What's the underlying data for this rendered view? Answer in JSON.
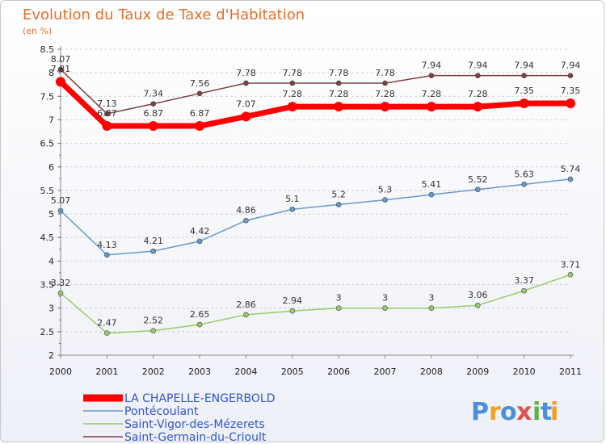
{
  "chart_data": {
    "type": "line",
    "title": "Evolution du Taux de Taxe d'Habitation",
    "subtitle": "(en %)",
    "x": [
      "2000",
      "2001",
      "2002",
      "2003",
      "2004",
      "2005",
      "2006",
      "2007",
      "2008",
      "2009",
      "2010",
      "2011"
    ],
    "ylim": [
      2,
      8.5
    ],
    "yticks": [
      "2",
      "2.5",
      "3",
      "3.5",
      "4",
      "4.5",
      "5",
      "5.5",
      "6",
      "6.5",
      "7",
      "7.5",
      "8",
      "8.5"
    ],
    "grid": "horizontal dashed",
    "legend_position": "bottom-left",
    "series": [
      {
        "name": "LA CHAPELLE-ENGERBOLD",
        "color": "#ff0000",
        "values": [
          7.81,
          6.87,
          6.87,
          6.87,
          7.07,
          7.28,
          7.28,
          7.28,
          7.28,
          7.28,
          7.35,
          7.35
        ],
        "labels": [
          "7.81",
          "6.87",
          "6.87",
          "6.87",
          "7.07",
          "7.28",
          "7.28",
          "7.28",
          "7.28",
          "7.28",
          "7.35",
          "7.35"
        ]
      },
      {
        "name": "Pontécoulant",
        "color": "#6699cc",
        "values": [
          5.07,
          4.13,
          4.21,
          4.42,
          4.86,
          5.1,
          5.2,
          5.3,
          5.41,
          5.52,
          5.63,
          5.74
        ],
        "labels": [
          "5.07",
          "4.13",
          "4.21",
          "4.42",
          "4.86",
          "5.1",
          "5.2",
          "5.3",
          "5.41",
          "5.52",
          "5.63",
          "5.74"
        ]
      },
      {
        "name": "Saint-Vigor-des-Mézerets",
        "color": "#99cc66",
        "values": [
          3.32,
          2.47,
          2.52,
          2.65,
          2.86,
          2.94,
          3,
          3,
          3,
          3.06,
          3.37,
          3.71
        ],
        "labels": [
          "3.32",
          "2.47",
          "2.52",
          "2.65",
          "2.86",
          "2.94",
          "3",
          "3",
          "3",
          "3.06",
          "3.37",
          "3.71"
        ]
      },
      {
        "name": "Saint-Germain-du-Crioult",
        "color": "#804040",
        "values": [
          8.07,
          7.13,
          7.34,
          7.56,
          7.78,
          7.78,
          7.78,
          7.78,
          7.94,
          7.94,
          7.94,
          7.94
        ],
        "labels": [
          "8.07",
          "7.13",
          "7.34",
          "7.56",
          "7.78",
          "7.78",
          "7.78",
          "7.78",
          "7.94",
          "7.94",
          "7.94",
          "7.94"
        ]
      }
    ]
  },
  "logo": {
    "letters": [
      "P",
      "r",
      "o",
      "x",
      "i",
      "t",
      "i"
    ],
    "colors": [
      "#4a90d9",
      "#f0a020",
      "#4a90d9",
      "#e05050",
      "#60b040",
      "#4a90d9",
      "#f0a020"
    ]
  }
}
